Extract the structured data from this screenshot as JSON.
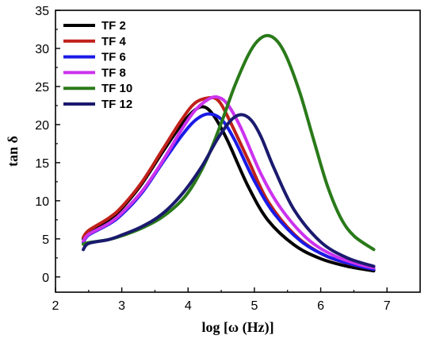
{
  "chart_data": {
    "type": "line",
    "xlabel": "log [ω (Hz)]",
    "ylabel": "tan δ",
    "xlim": [
      2,
      7.5
    ],
    "ylim": [
      -2,
      35
    ],
    "xticks": [
      2,
      3,
      4,
      5,
      6,
      7
    ],
    "yticks": [
      0,
      5,
      10,
      15,
      20,
      25,
      30,
      35
    ],
    "legend_position": "top-left",
    "grid": false,
    "series": [
      {
        "name": "TF 2",
        "color": "#000000",
        "x": [
          2.42,
          2.5,
          2.8,
          3.0,
          3.3,
          3.6,
          3.9,
          4.1,
          4.25,
          4.4,
          4.6,
          4.9,
          5.2,
          5.6,
          6.0,
          6.4,
          6.8
        ],
        "y": [
          5.0,
          5.9,
          7.5,
          9.0,
          12.2,
          16.2,
          20.0,
          21.9,
          22.3,
          21.0,
          17.8,
          12.0,
          7.5,
          4.2,
          2.4,
          1.4,
          0.8
        ]
      },
      {
        "name": "TF 4",
        "color": "#c0201a",
        "x": [
          2.42,
          2.5,
          2.8,
          3.0,
          3.3,
          3.6,
          3.9,
          4.1,
          4.3,
          4.45,
          4.6,
          4.9,
          5.2,
          5.6,
          6.0,
          6.4,
          6.8
        ],
        "y": [
          5.2,
          6.1,
          7.7,
          9.2,
          12.4,
          16.5,
          20.6,
          22.8,
          23.5,
          23.2,
          21.0,
          15.5,
          10.0,
          5.6,
          3.1,
          1.8,
          1.0
        ]
      },
      {
        "name": "TF 6",
        "color": "#1a1ae6",
        "x": [
          2.42,
          2.5,
          2.8,
          3.0,
          3.3,
          3.6,
          3.9,
          4.1,
          4.3,
          4.5,
          4.7,
          5.0,
          5.3,
          5.7,
          6.1,
          6.5,
          6.8
        ],
        "y": [
          4.5,
          5.5,
          6.9,
          8.2,
          11.0,
          14.8,
          18.5,
          20.5,
          21.4,
          20.7,
          18.0,
          12.6,
          8.3,
          4.7,
          2.7,
          1.6,
          1.0
        ]
      },
      {
        "name": "TF 8",
        "color": "#cc33ee",
        "x": [
          2.42,
          2.5,
          2.8,
          3.0,
          3.3,
          3.6,
          3.9,
          4.1,
          4.3,
          4.45,
          4.6,
          4.8,
          5.1,
          5.4,
          5.8,
          6.2,
          6.6,
          6.8
        ],
        "y": [
          4.7,
          5.6,
          7.0,
          8.4,
          11.2,
          15.0,
          19.3,
          21.8,
          23.3,
          23.6,
          22.6,
          19.5,
          13.5,
          9.0,
          5.0,
          2.8,
          1.6,
          1.2
        ]
      },
      {
        "name": "TF 10",
        "color": "#2a7a1a",
        "x": [
          2.42,
          2.5,
          2.8,
          3.0,
          3.3,
          3.6,
          3.9,
          4.1,
          4.3,
          4.5,
          4.7,
          4.9,
          5.05,
          5.2,
          5.35,
          5.5,
          5.7,
          5.9,
          6.1,
          6.3,
          6.5,
          6.8
        ],
        "y": [
          4.3,
          4.5,
          4.9,
          5.4,
          6.4,
          7.8,
          10.0,
          12.4,
          15.8,
          20.2,
          25.0,
          29.0,
          31.0,
          31.7,
          30.9,
          28.6,
          23.8,
          17.8,
          12.0,
          7.8,
          5.4,
          3.6
        ]
      },
      {
        "name": "TF 12",
        "color": "#1a1a6e",
        "x": [
          2.42,
          2.5,
          2.8,
          3.0,
          3.3,
          3.6,
          3.9,
          4.2,
          4.45,
          4.65,
          4.8,
          4.95,
          5.1,
          5.3,
          5.6,
          6.0,
          6.4,
          6.8
        ],
        "y": [
          3.6,
          4.4,
          4.9,
          5.5,
          6.6,
          8.2,
          10.8,
          14.4,
          18.2,
          20.6,
          21.3,
          20.6,
          18.4,
          14.2,
          8.8,
          4.6,
          2.5,
          1.4
        ]
      }
    ]
  }
}
